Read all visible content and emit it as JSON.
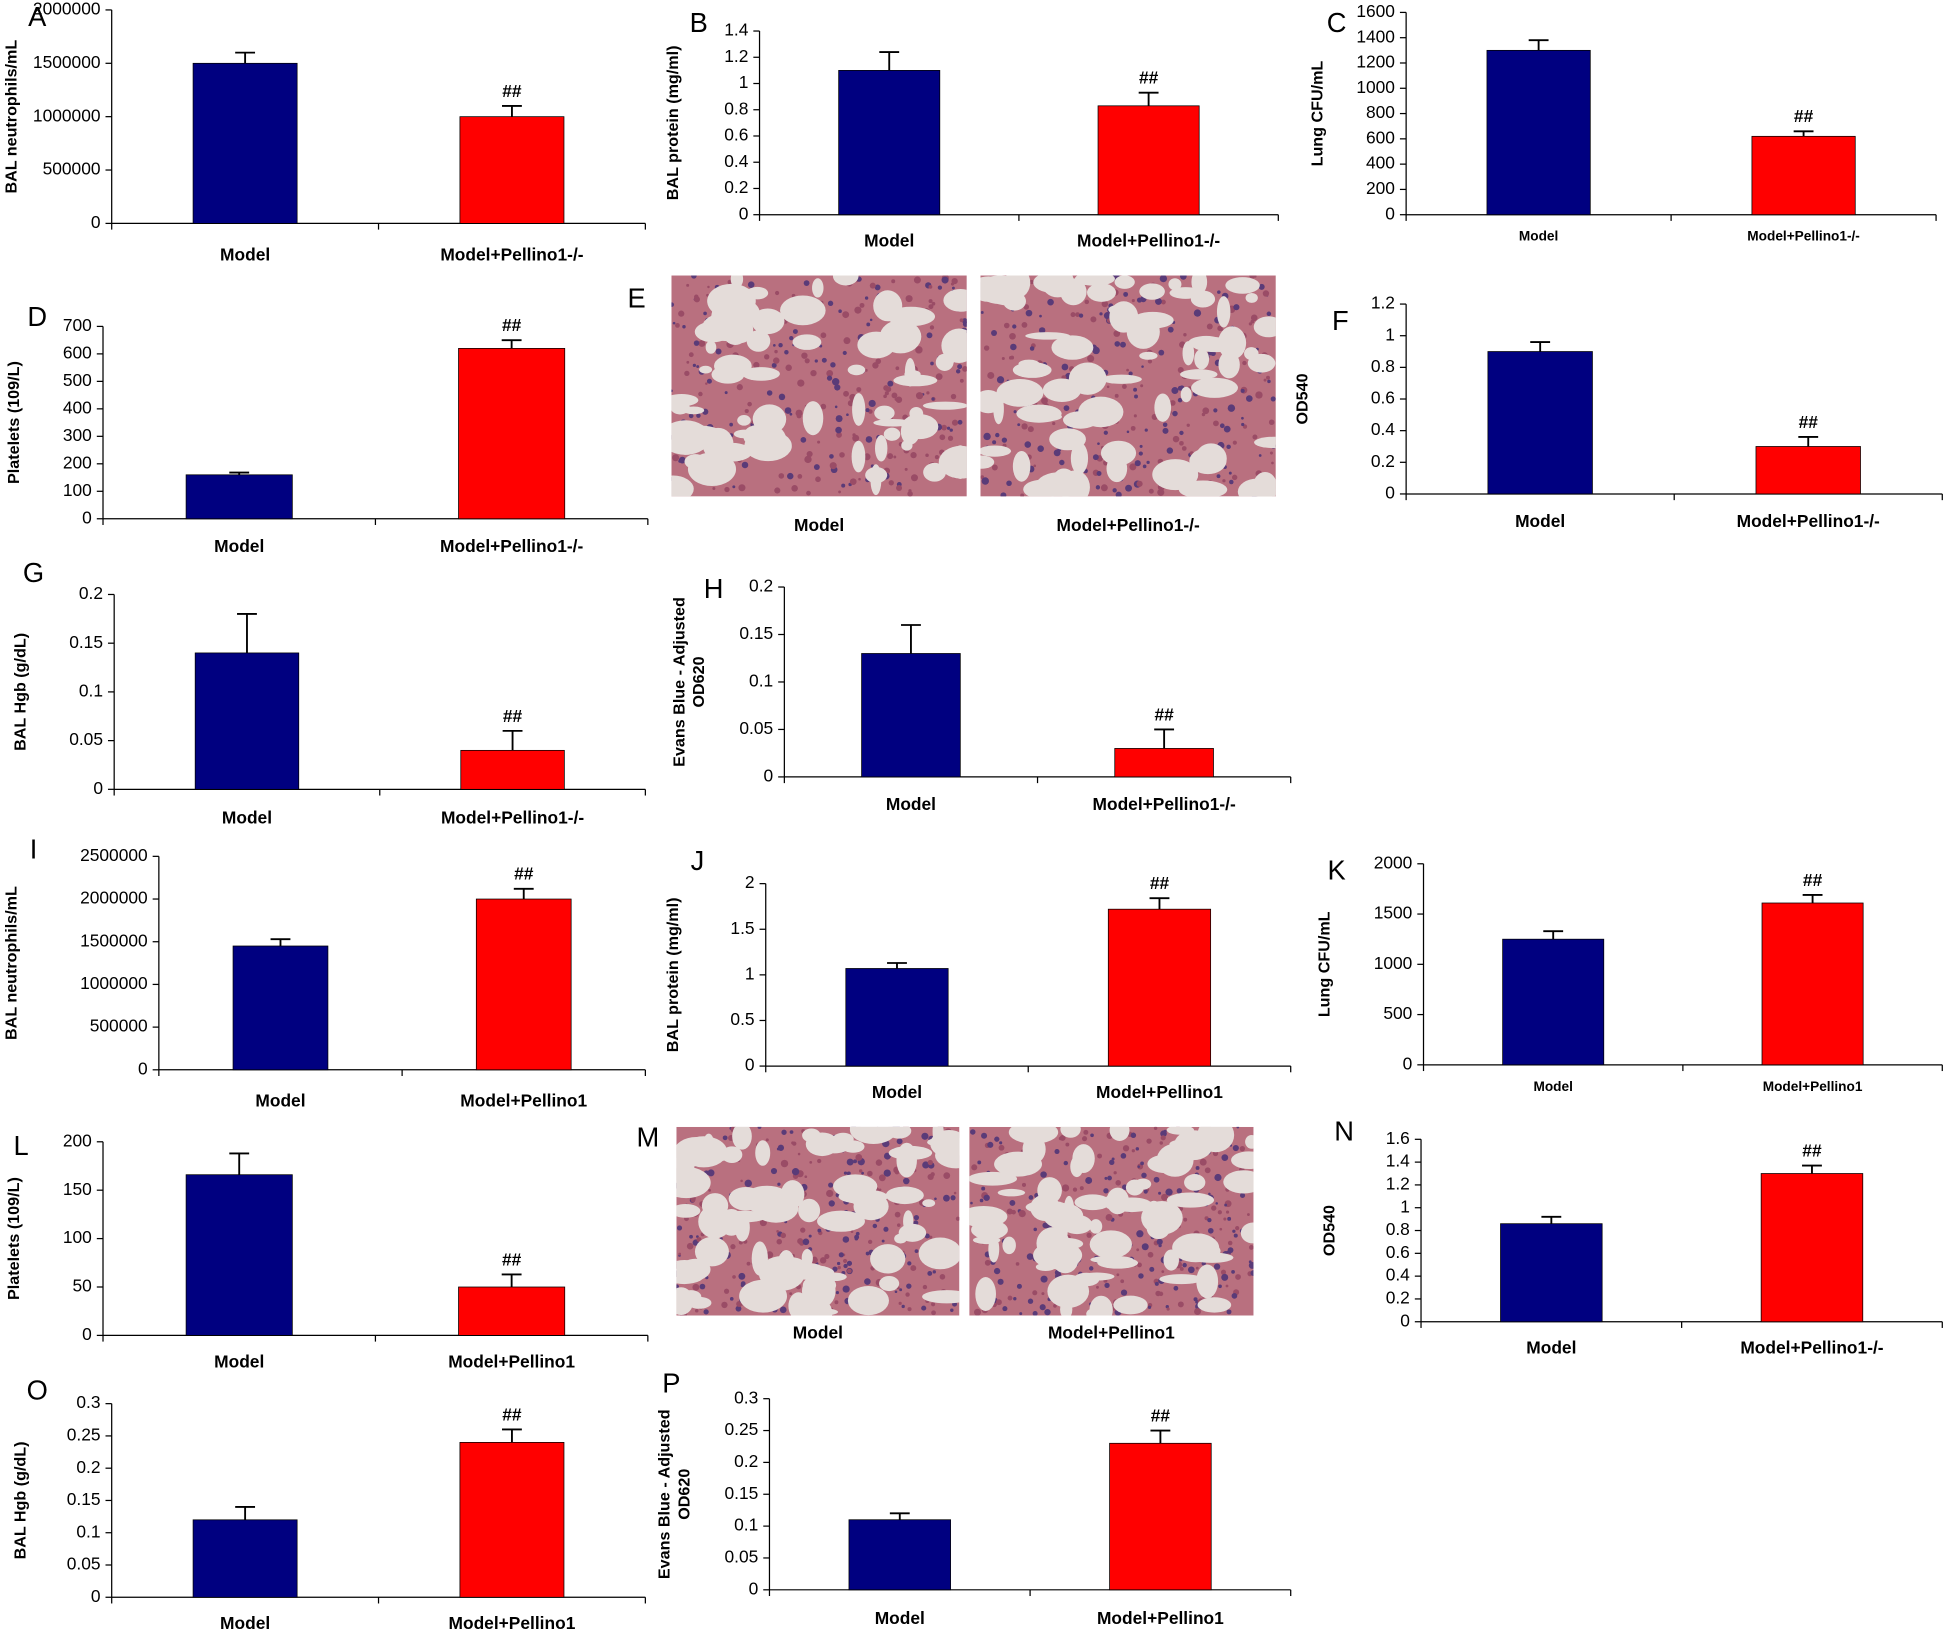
{
  "chart_data": [
    {
      "type": "bar",
      "panel": "A",
      "ylabel": "BAL neutrophils/mL",
      "categories": [
        "Model",
        "Model+Pellino1-/-"
      ],
      "values": [
        1500000,
        1000000
      ],
      "errors": [
        100000,
        100000
      ],
      "annotations": [
        null,
        "##"
      ],
      "colors": [
        "#000080",
        "#ff0000"
      ],
      "ylim": [
        0,
        2000000
      ],
      "yticks": [
        0,
        500000,
        1000000,
        1500000,
        2000000
      ]
    },
    {
      "type": "bar",
      "panel": "B",
      "ylabel": "BAL protein (mg/ml)",
      "categories": [
        "Model",
        "Model+Pellino1-/-"
      ],
      "values": [
        1.1,
        0.83
      ],
      "errors": [
        0.14,
        0.1
      ],
      "annotations": [
        null,
        "##"
      ],
      "colors": [
        "#000080",
        "#ff0000"
      ],
      "ylim": [
        0,
        1.4
      ],
      "yticks": [
        0,
        0.2,
        0.4,
        0.6,
        0.8,
        1,
        1.2,
        1.4
      ]
    },
    {
      "type": "bar",
      "panel": "C",
      "ylabel": "Lung CFU/mL",
      "categories": [
        "Model",
        "Model+Pellino1-/-"
      ],
      "values": [
        1300,
        620
      ],
      "errors": [
        80,
        40
      ],
      "annotations": [
        null,
        "##"
      ],
      "colors": [
        "#000080",
        "#ff0000"
      ],
      "ylim": [
        0,
        1600
      ],
      "yticks": [
        0,
        200,
        400,
        600,
        800,
        1000,
        1200,
        1400,
        1600
      ]
    },
    {
      "type": "bar",
      "panel": "D",
      "ylabel": "Platelets (109/L)",
      "categories": [
        "Model",
        "Model+Pellino1-/-"
      ],
      "values": [
        160,
        620
      ],
      "errors": [
        8,
        30
      ],
      "annotations": [
        null,
        "##"
      ],
      "colors": [
        "#000080",
        "#ff0000"
      ],
      "ylim": [
        0,
        700
      ],
      "yticks": [
        0,
        100,
        200,
        300,
        400,
        500,
        600,
        700
      ]
    },
    {
      "type": "image",
      "panel": "E",
      "categories": [
        "Model",
        "Model+Pellino1-/-"
      ]
    },
    {
      "type": "bar",
      "panel": "F",
      "ylabel": "OD540",
      "categories": [
        "Model",
        "Model+Pellino1-/-"
      ],
      "values": [
        0.9,
        0.3
      ],
      "errors": [
        0.06,
        0.06
      ],
      "annotations": [
        null,
        "##"
      ],
      "colors": [
        "#000080",
        "#ff0000"
      ],
      "ylim": [
        0,
        1.2
      ],
      "yticks": [
        0,
        0.2,
        0.4,
        0.6,
        0.8,
        1,
        1.2
      ]
    },
    {
      "type": "bar",
      "panel": "G",
      "ylabel": "BAL Hgb (g/dL)",
      "categories": [
        "Model",
        "Model+Pellino1-/-"
      ],
      "values": [
        0.14,
        0.04
      ],
      "errors": [
        0.04,
        0.02
      ],
      "annotations": [
        null,
        "##"
      ],
      "colors": [
        "#000080",
        "#ff0000"
      ],
      "ylim": [
        0,
        0.2
      ],
      "yticks": [
        0,
        0.05,
        0.1,
        0.15,
        0.2
      ]
    },
    {
      "type": "bar",
      "panel": "H",
      "ylabel": [
        "Evans Blue - Adjusted",
        "OD620"
      ],
      "categories": [
        "Model",
        "Model+Pellino1-/-"
      ],
      "values": [
        0.13,
        0.03
      ],
      "errors": [
        0.03,
        0.02
      ],
      "annotations": [
        null,
        "##"
      ],
      "colors": [
        "#000080",
        "#ff0000"
      ],
      "ylim": [
        0,
        0.2
      ],
      "yticks": [
        0,
        0.05,
        0.1,
        0.15,
        0.2
      ]
    },
    {
      "type": "bar",
      "panel": "I",
      "ylabel": "BAL neutrophils/mL",
      "categories": [
        "Model",
        "Model+Pellino1"
      ],
      "values": [
        1450000,
        2000000
      ],
      "errors": [
        80000,
        120000
      ],
      "annotations": [
        null,
        "##"
      ],
      "colors": [
        "#000080",
        "#ff0000"
      ],
      "ylim": [
        0,
        2500000
      ],
      "yticks": [
        0,
        500000,
        1000000,
        1500000,
        2000000,
        2500000
      ]
    },
    {
      "type": "bar",
      "panel": "J",
      "ylabel": "BAL protein (mg/ml)",
      "categories": [
        "Model",
        "Model+Pellino1"
      ],
      "values": [
        1.07,
        1.72
      ],
      "errors": [
        0.06,
        0.12
      ],
      "annotations": [
        null,
        "##"
      ],
      "colors": [
        "#000080",
        "#ff0000"
      ],
      "ylim": [
        0,
        2
      ],
      "yticks": [
        0,
        0.5,
        1,
        1.5,
        2
      ]
    },
    {
      "type": "bar",
      "panel": "K",
      "ylabel": "Lung CFU/mL",
      "categories": [
        "Model",
        "Model+Pellino1"
      ],
      "values": [
        1250,
        1610
      ],
      "errors": [
        80,
        80
      ],
      "annotations": [
        null,
        "##"
      ],
      "colors": [
        "#000080",
        "#ff0000"
      ],
      "ylim": [
        0,
        2000
      ],
      "yticks": [
        0,
        500,
        1000,
        1500,
        2000
      ]
    },
    {
      "type": "bar",
      "panel": "L",
      "ylabel": "Platelets (109/L)",
      "categories": [
        "Model",
        "Model+Pellino1"
      ],
      "values": [
        166,
        50
      ],
      "errors": [
        22,
        13
      ],
      "annotations": [
        null,
        "##"
      ],
      "colors": [
        "#000080",
        "#ff0000"
      ],
      "ylim": [
        0,
        200
      ],
      "yticks": [
        0,
        50,
        100,
        150,
        200
      ]
    },
    {
      "type": "image",
      "panel": "M",
      "categories": [
        "Model",
        "Model+Pellino1"
      ]
    },
    {
      "type": "bar",
      "panel": "N",
      "ylabel": "OD540",
      "categories": [
        "Model",
        "Model+Pellino1-/-"
      ],
      "values": [
        0.86,
        1.3
      ],
      "errors": [
        0.06,
        0.07
      ],
      "annotations": [
        null,
        "##"
      ],
      "colors": [
        "#000080",
        "#ff0000"
      ],
      "ylim": [
        0,
        1.6
      ],
      "yticks": [
        0,
        0.2,
        0.4,
        0.6,
        0.8,
        1,
        1.2,
        1.4,
        1.6
      ]
    },
    {
      "type": "bar",
      "panel": "O",
      "ylabel": "BAL Hgb (g/dL)",
      "categories": [
        "Model",
        "Model+Pellino1"
      ],
      "values": [
        0.12,
        0.24
      ],
      "errors": [
        0.02,
        0.02
      ],
      "annotations": [
        null,
        "##"
      ],
      "colors": [
        "#000080",
        "#ff0000"
      ],
      "ylim": [
        0,
        0.3
      ],
      "yticks": [
        0,
        0.05,
        0.1,
        0.15,
        0.2,
        0.25,
        0.3
      ]
    },
    {
      "type": "bar",
      "panel": "P",
      "ylabel": [
        "Evans Blue - Adjusted",
        "OD620"
      ],
      "categories": [
        "Model",
        "Model+Pellino1"
      ],
      "values": [
        0.11,
        0.23
      ],
      "errors": [
        0.01,
        0.02
      ],
      "annotations": [
        null,
        "##"
      ],
      "colors": [
        "#000080",
        "#ff0000"
      ],
      "ylim": [
        0,
        0.3
      ],
      "yticks": [
        0,
        0.05,
        0.1,
        0.15,
        0.2,
        0.25,
        0.3
      ]
    }
  ]
}
